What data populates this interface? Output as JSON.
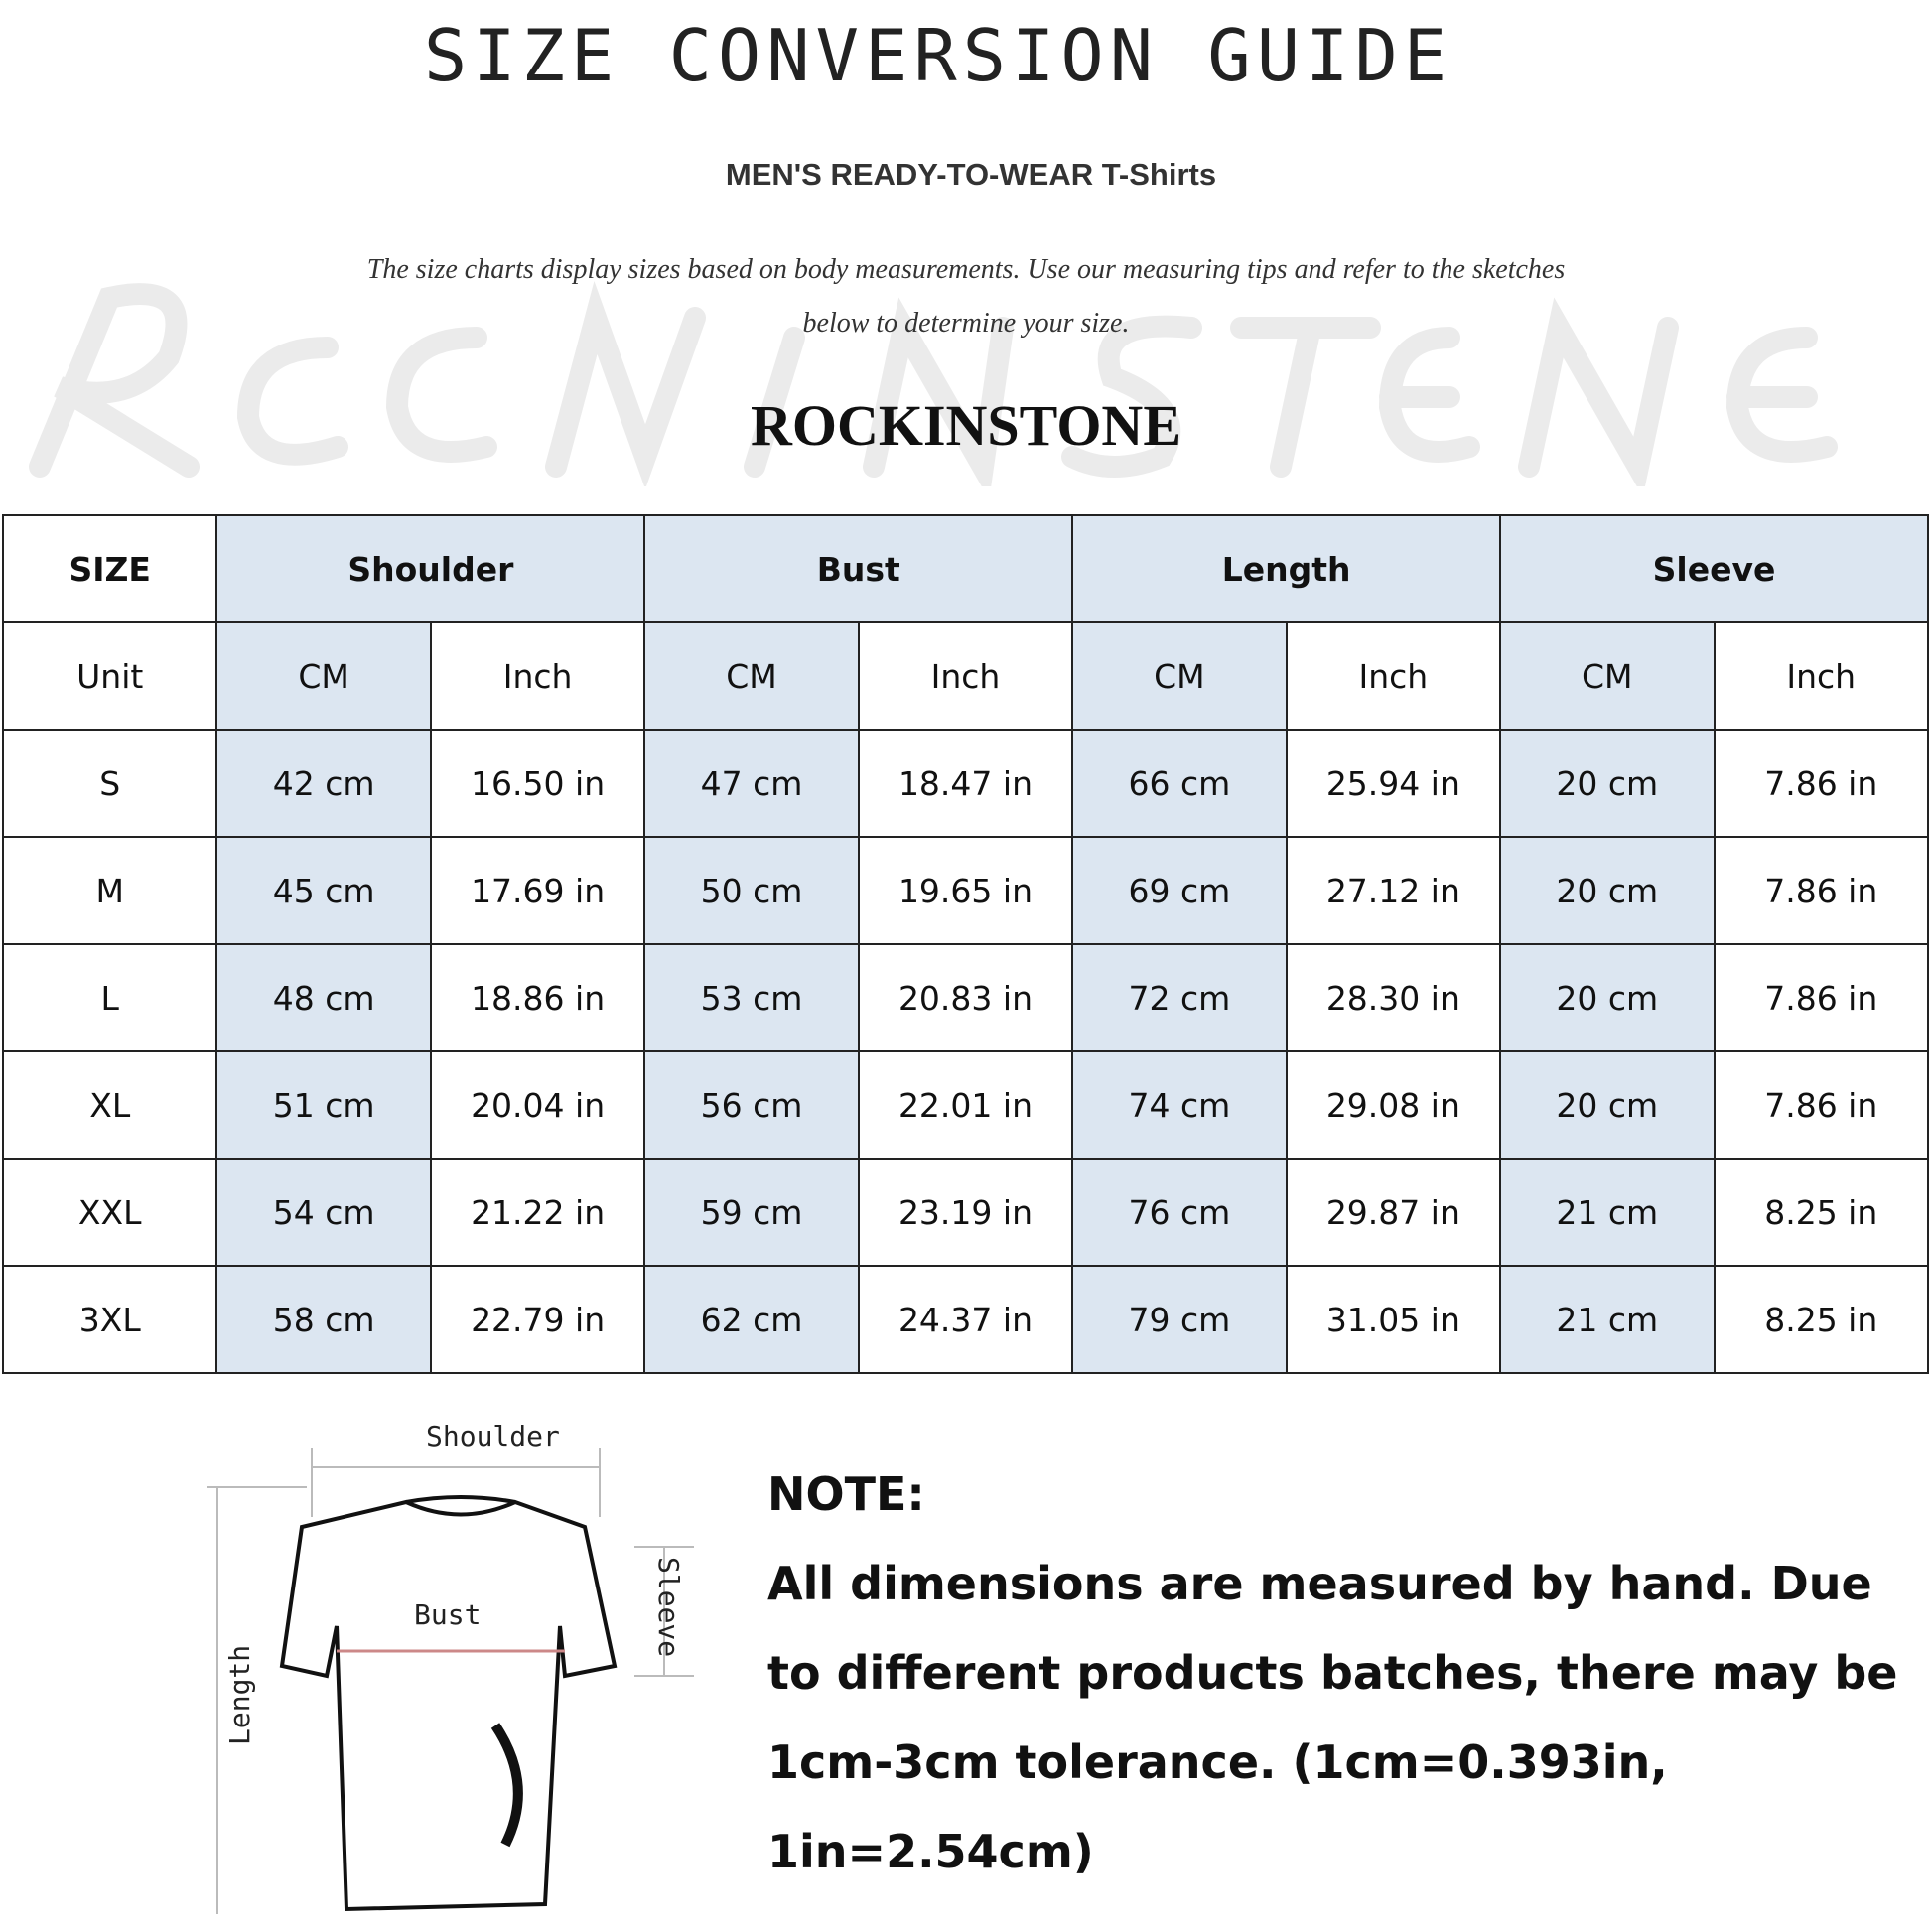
{
  "title": "SIZE CONVERSION GUIDE",
  "subtitle": "MEN'S READY-TO-WEAR T-Shirts",
  "intro_line1": "The size charts display sizes based on body measurements. Use our measuring tips and refer to the sketches",
  "intro_line2": "below to determine your size.",
  "watermark": "ROCKINSTONE",
  "brand": "ROCKINSTONE",
  "table": {
    "headers": [
      "SIZE",
      "Shoulder",
      "Bust",
      "Length",
      "Sleeve"
    ],
    "unit_row": [
      "Unit",
      "CM",
      "Inch",
      "CM",
      "Inch",
      "CM",
      "Inch",
      "CM",
      "Inch"
    ],
    "rows": [
      [
        "S",
        "42 cm",
        "16.50 in",
        "47 cm",
        "18.47 in",
        "66 cm",
        "25.94 in",
        "20 cm",
        "7.86 in"
      ],
      [
        "M",
        "45 cm",
        "17.69 in",
        "50 cm",
        "19.65 in",
        "69 cm",
        "27.12 in",
        "20 cm",
        "7.86 in"
      ],
      [
        "L",
        "48 cm",
        "18.86 in",
        "53 cm",
        "20.83 in",
        "72 cm",
        "28.30 in",
        "20 cm",
        "7.86 in"
      ],
      [
        "XL",
        "51 cm",
        "20.04 in",
        "56 cm",
        "22.01 in",
        "74 cm",
        "29.08 in",
        "20 cm",
        "7.86 in"
      ],
      [
        "XXL",
        "54 cm",
        "21.22 in",
        "59 cm",
        "23.19 in",
        "76 cm",
        "29.87 in",
        "21 cm",
        "8.25 in"
      ],
      [
        "3XL",
        "58 cm",
        "22.79 in",
        "62 cm",
        "24.37 in",
        "79 cm",
        "31.05 in",
        "21 cm",
        "8.25 in"
      ]
    ],
    "highlight_color": "#dce6f1"
  },
  "diagram": {
    "shoulder_label": "Shoulder",
    "bust_label": "Bust",
    "length_label": "Length",
    "sleeve_label": "Sleeve"
  },
  "note": {
    "heading": "NOTE:",
    "body": "All dimensions are measured by hand. Due to different products batches, there may be 1cm-3cm tolerance. (1cm=0.393in, 1in=2.54cm)"
  }
}
